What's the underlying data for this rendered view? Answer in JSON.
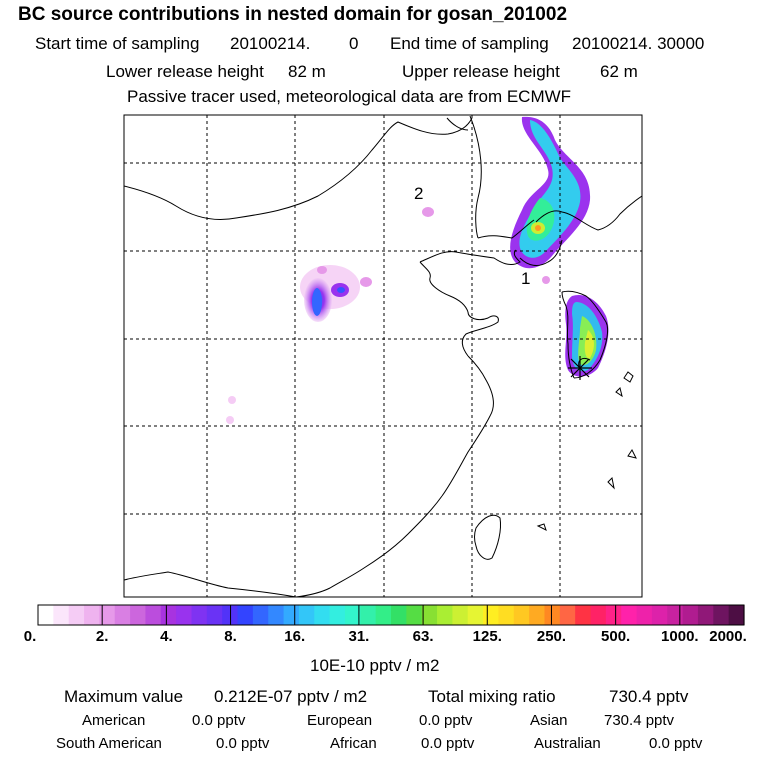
{
  "header": {
    "title": "BC  source contributions in nested domain for gosan_201002",
    "start_label": "Start time of sampling",
    "start_value": "20100214.",
    "start_hour": "0",
    "end_label": "End time of sampling",
    "end_value": "20100214. 30000",
    "lower_label": "Lower release height",
    "lower_value": "82 m",
    "upper_label": "Upper release height",
    "upper_value": "62 m",
    "note": "Passive tracer used, meteorological data are from ECMWF"
  },
  "map": {
    "markers": [
      "1",
      "2"
    ],
    "colors": {
      "coast": "#000000",
      "grid": "#000000"
    }
  },
  "colorbar": {
    "labels": [
      "0.",
      "2.",
      "4.",
      "8.",
      "16.",
      "31.",
      "63.",
      "125.",
      "250.",
      "500.",
      "1000.",
      "2000."
    ],
    "colors": [
      "#ffffff",
      "#fbe6fb",
      "#f5ccf5",
      "#efb3ef",
      "#e699e9",
      "#d97fe3",
      "#cc66dd",
      "#bb4ddd",
      "#a833e0",
      "#9933ee",
      "#7f33f2",
      "#6a33f5",
      "#5233f8",
      "#3344ff",
      "#3366ff",
      "#3388ff",
      "#33aaff",
      "#33c6f8",
      "#33ddf0",
      "#33eee0",
      "#33f5cc",
      "#33f0aa",
      "#33ee88",
      "#33e066",
      "#55dd44",
      "#88e033",
      "#aaee33",
      "#ccf033",
      "#e6f533",
      "#ffee22",
      "#ffdd22",
      "#ffc822",
      "#ffaa22",
      "#ff8822",
      "#ff6644",
      "#ff3344",
      "#ff2266",
      "#ff2288",
      "#ff22aa",
      "#ee22aa",
      "#dd22aa",
      "#c822a0",
      "#b01c90",
      "#901878",
      "#6e1460",
      "#4d0e44"
    ],
    "units": "10E-10 pptv / m2"
  },
  "stats": {
    "max_label": "Maximum value",
    "max_value": "0.212E-07 pptv / m2",
    "total_label": "Total mixing ratio",
    "total_value": "730.4 pptv",
    "regions": [
      {
        "name": "American",
        "value": "0.0 pptv"
      },
      {
        "name": "European",
        "value": "0.0 pptv"
      },
      {
        "name": "Asian",
        "value": "730.4 pptv"
      },
      {
        "name": "South American",
        "value": "0.0 pptv"
      },
      {
        "name": "African",
        "value": "0.0 pptv"
      },
      {
        "name": "Australian",
        "value": "0.0 pptv"
      }
    ]
  }
}
